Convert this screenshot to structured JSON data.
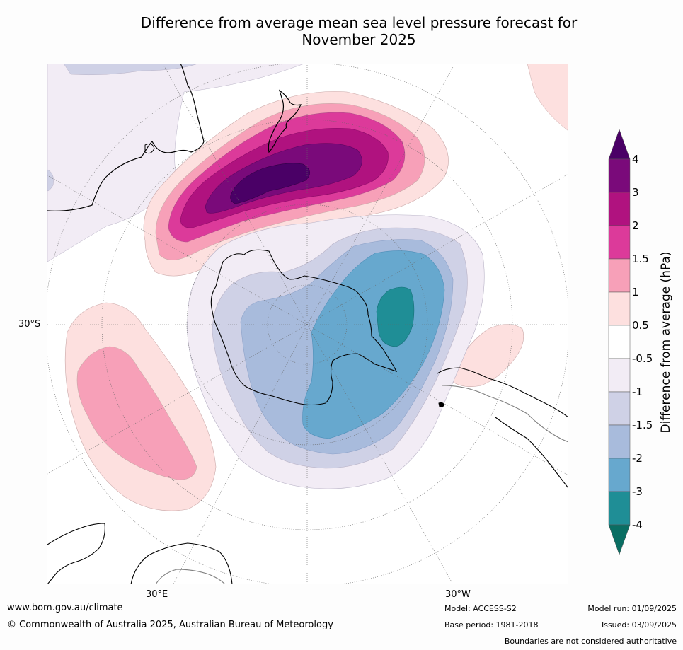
{
  "title": {
    "line1": "Difference from average mean sea level pressure forecast for",
    "line2": "November 2025"
  },
  "map": {
    "lat_label": "30°S",
    "lon_labels": {
      "east": "30°E",
      "west": "30°W"
    },
    "projection": "south-polar-stereographic"
  },
  "colorbar": {
    "label": "Difference from average (hPa)",
    "ticks": [
      "4",
      "3",
      "2",
      "1.5",
      "1",
      "0.5",
      "-0.5",
      "-1",
      "-1.5",
      "-2",
      "-3",
      "-4"
    ],
    "colors": {
      "gt4": "#4a0066",
      "3_to_4": "#7a0a7a",
      "2_to_3": "#b0127f",
      "1_5_to_2": "#dc3a9a",
      "1_to_1_5": "#f7a0b8",
      "0_5_to_1": "#fde0df",
      "-0_5_to_0_5": "#ffffff",
      "-1_to_-0_5": "#f2ecf5",
      "-1_5_to_-1": "#cfd1e6",
      "-2_to_-1_5": "#a8bbdc",
      "-3_to_-2": "#67a8ce",
      "-4_to_-3": "#1f8e96",
      "lt-4": "#0a6e63"
    }
  },
  "footer": {
    "website": "www.bom.gov.au/climate",
    "copyright": "© Commonwealth of Australia 2025, Australian Bureau of Meteorology",
    "model": "Model: ACCESS-S2",
    "base_period": "Base period: 1981-2018",
    "model_run": "Model run: 01/09/2025",
    "issued": "Issued: 03/09/2025",
    "disclaimer": "Boundaries are not considered authoritative"
  }
}
